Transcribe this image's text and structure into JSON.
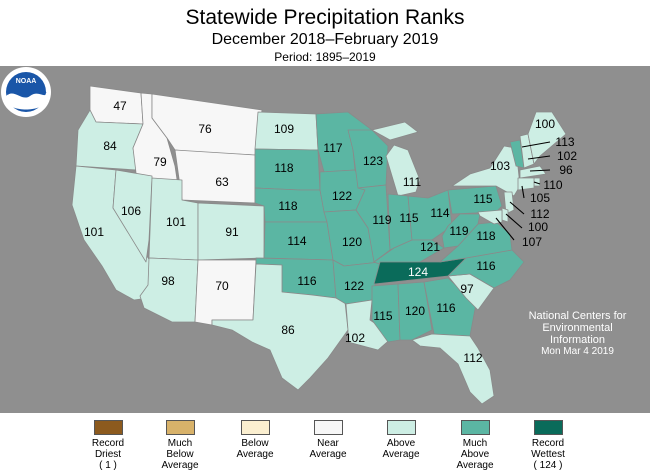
{
  "header": {
    "title": "Statewide Precipitation Ranks",
    "subtitle": "December 2018–February 2019",
    "period": "Period: 1895–2019"
  },
  "colors": {
    "background_gray": "#8f8f8f",
    "record_driest": "#8c5a1e",
    "much_below": "#d8b26a",
    "below": "#fbefd0",
    "near": "#f7f7f7",
    "above": "#cdeee4",
    "much_above": "#5bb6a3",
    "record_wettest": "#0a6b5a"
  },
  "legend": [
    {
      "line1": "Record",
      "line2": "Driest",
      "line3": "( 1 )",
      "category": "record_driest"
    },
    {
      "line1": "Much",
      "line2": "Below",
      "line3": "Average",
      "category": "much_below"
    },
    {
      "line1": "Below",
      "line2": "Average",
      "line3": "",
      "category": "below"
    },
    {
      "line1": "Near",
      "line2": "Average",
      "line3": "",
      "category": "near"
    },
    {
      "line1": "Above",
      "line2": "Average",
      "line3": "",
      "category": "above"
    },
    {
      "line1": "Much",
      "line2": "Above",
      "line3": "Average",
      "category": "much_above"
    },
    {
      "line1": "Record",
      "line2": "Wettest",
      "line3": "( 124 )",
      "category": "record_wettest"
    }
  ],
  "states": {
    "WA": {
      "rank": "47",
      "category": "near"
    },
    "OR": {
      "rank": "84",
      "category": "above"
    },
    "CA": {
      "rank": "101",
      "category": "above"
    },
    "ID": {
      "rank": "79",
      "category": "near"
    },
    "NV": {
      "rank": "106",
      "category": "above"
    },
    "MT": {
      "rank": "76",
      "category": "near"
    },
    "WY": {
      "rank": "63",
      "category": "near"
    },
    "UT": {
      "rank": "101",
      "category": "above"
    },
    "CO": {
      "rank": "91",
      "category": "above"
    },
    "AZ": {
      "rank": "98",
      "category": "above"
    },
    "NM": {
      "rank": "70",
      "category": "near"
    },
    "ND": {
      "rank": "109",
      "category": "above"
    },
    "SD": {
      "rank": "118",
      "category": "much_above"
    },
    "NE": {
      "rank": "118",
      "category": "much_above"
    },
    "KS": {
      "rank": "114",
      "category": "much_above"
    },
    "OK": {
      "rank": "116",
      "category": "much_above"
    },
    "TX": {
      "rank": "86",
      "category": "above"
    },
    "MN": {
      "rank": "117",
      "category": "much_above"
    },
    "IA": {
      "rank": "122",
      "category": "much_above"
    },
    "MO": {
      "rank": "120",
      "category": "much_above"
    },
    "AR": {
      "rank": "122",
      "category": "much_above"
    },
    "LA": {
      "rank": "102",
      "category": "above"
    },
    "WI": {
      "rank": "123",
      "category": "much_above"
    },
    "IL": {
      "rank": "119",
      "category": "much_above"
    },
    "MI": {
      "rank": "111",
      "category": "above"
    },
    "IN": {
      "rank": "115",
      "category": "much_above"
    },
    "OH": {
      "rank": "114",
      "category": "much_above"
    },
    "KY": {
      "rank": "121",
      "category": "much_above"
    },
    "TN": {
      "rank": "124",
      "category": "record_wettest"
    },
    "MS": {
      "rank": "115",
      "category": "much_above"
    },
    "AL": {
      "rank": "120",
      "category": "much_above"
    },
    "GA": {
      "rank": "116",
      "category": "much_above"
    },
    "FL": {
      "rank": "112",
      "category": "above"
    },
    "SC": {
      "rank": "97",
      "category": "above"
    },
    "NC": {
      "rank": "116",
      "category": "much_above"
    },
    "VA": {
      "rank": "118",
      "category": "much_above"
    },
    "WV": {
      "rank": "119",
      "category": "much_above"
    },
    "PA": {
      "rank": "115",
      "category": "much_above"
    },
    "NY": {
      "rank": "103",
      "category": "above"
    },
    "VT": {
      "rank": "113",
      "category": "much_above"
    },
    "NH": {
      "rank": "102",
      "category": "above"
    },
    "ME": {
      "rank": "100",
      "category": "above"
    },
    "MA": {
      "rank": "96",
      "category": "above"
    },
    "RI": {
      "rank": "110",
      "category": "above"
    },
    "CT": {
      "rank": "105",
      "category": "above"
    },
    "NJ": {
      "rank": "112",
      "category": "above"
    },
    "DE": {
      "rank": "100",
      "category": "above"
    },
    "MD": {
      "rank": "107",
      "category": "above"
    }
  },
  "credit": {
    "logo_text": "NOAA",
    "line1": "National Centers for",
    "line2": "Environmental",
    "line3": "Information",
    "date": "Mon Mar  4 2019"
  }
}
